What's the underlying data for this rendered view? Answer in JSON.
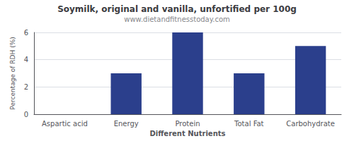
{
  "chart_data": {
    "type": "bar",
    "title": "Soymilk, original and vanilla, unfortified per 100g",
    "subtitle": "www.dietandfitnesstoday.com",
    "xlabel": "Different Nutrients",
    "ylabel": "Percentage of RDH (%)",
    "categories": [
      "Aspartic acid",
      "Energy",
      "Protein",
      "Total Fat",
      "Carbohydrate"
    ],
    "values": [
      0,
      3.0,
      6.0,
      3.0,
      5.0
    ],
    "color": "#2b3f8c",
    "ylim": [
      0,
      6
    ],
    "yticks": [
      0,
      2,
      4,
      6
    ],
    "grid": true
  }
}
